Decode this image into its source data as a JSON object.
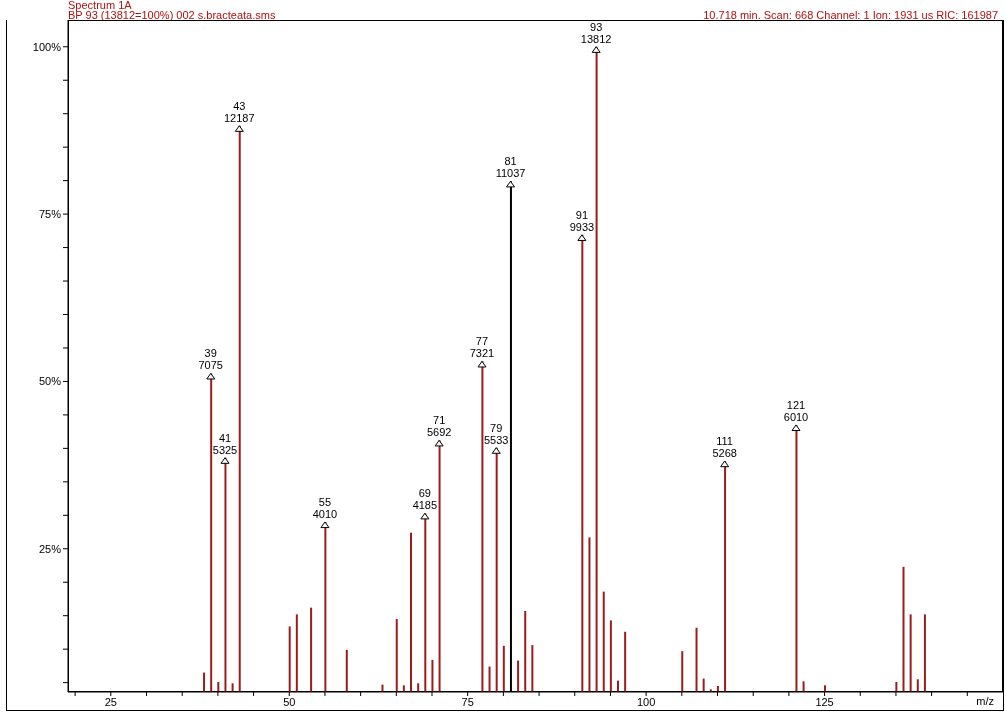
{
  "chart_data": {
    "type": "bar",
    "title": "Spectrum 1A",
    "subtitle": "BP 93 (13812=100%) 002 s.bracteata.sms",
    "xlabel": "m/z",
    "annotations": [
      "10.718 min. Scan: 668 Channel: 1 Ion: 1931 us RIC: 161987",
      {
        "text": "39\n7075",
        "x": 39,
        "y": 51.2
      },
      {
        "text": "41\n5325",
        "x": 41,
        "y": 38.6
      },
      {
        "text": "43\n12187",
        "x": 43,
        "y": 88.2
      },
      {
        "text": "55\n4010",
        "x": 55,
        "y": 29.0
      },
      {
        "text": "69\n4185",
        "x": 69,
        "y": 30.3
      },
      {
        "text": "71\n5692",
        "x": 71,
        "y": 41.2
      },
      {
        "text": "77\n7321",
        "x": 77,
        "y": 53.0
      },
      {
        "text": "79\n5533",
        "x": 79,
        "y": 40.1
      },
      {
        "text": "81\n11037",
        "x": 81,
        "y": 79.9
      },
      {
        "text": "91\n9933",
        "x": 91,
        "y": 71.9
      },
      {
        "text": "93\n13812",
        "x": 93,
        "y": 100
      },
      {
        "text": "111\n5268",
        "x": 111,
        "y": 38.1
      },
      {
        "text": "121\n6010",
        "x": 121,
        "y": 43.5
      }
    ],
    "x": [
      38,
      39,
      40,
      41,
      42,
      43,
      50,
      51,
      53,
      55,
      58,
      63,
      65,
      66,
      67,
      68,
      69,
      70,
      71,
      77,
      78,
      79,
      80,
      81,
      82,
      83,
      84,
      91,
      92,
      93,
      94,
      95,
      96,
      97,
      105,
      107,
      108,
      109,
      110,
      111,
      121,
      122,
      125,
      135,
      136,
      137,
      138,
      139
    ],
    "values": [
      6.5,
      51.2,
      5.1,
      38.6,
      4.9,
      88.2,
      13.4,
      15.2,
      16.2,
      29.0,
      9.9,
      4.7,
      14.5,
      4.6,
      27.4,
      4.9,
      30.3,
      8.4,
      41.2,
      53.0,
      7.4,
      40.1,
      10.5,
      79.9,
      8.3,
      15.7,
      10.6,
      71.9,
      26.7,
      100,
      18.6,
      14.3,
      5.3,
      12.6,
      9.7,
      13.2,
      5.6,
      4.0,
      4.5,
      38.1,
      43.5,
      5.2,
      4.6,
      5.1,
      22.3,
      15.2,
      5.5,
      15.2
    ],
    "colors": [
      "#9b1c1c",
      "#9b1c1c",
      "#9b1c1c",
      "#9b1c1c",
      "#9b1c1c",
      "#9b1c1c",
      "#9b1c1c",
      "#9b1c1c",
      "#9b1c1c",
      "#9b1c1c",
      "#9b1c1c",
      "#9b1c1c",
      "#9b1c1c",
      "#9b1c1c",
      "#9b1c1c",
      "#9b1c1c",
      "#9b1c1c",
      "#9b1c1c",
      "#9b1c1c",
      "#9b1c1c",
      "#9b1c1c",
      "#9b1c1c",
      "#9b1c1c",
      "#000000",
      "#9b1c1c",
      "#9b1c1c",
      "#9b1c1c",
      "#9b1c1c",
      "#9b1c1c",
      "#9b1c1c",
      "#9b1c1c",
      "#9b1c1c",
      "#9b1c1c",
      "#9b1c1c",
      "#9b1c1c",
      "#9b1c1c",
      "#9b1c1c",
      "#9b1c1c",
      "#9b1c1c",
      "#9b1c1c",
      "#9b1c1c",
      "#9b1c1c",
      "#9b1c1c",
      "#9b1c1c",
      "#9b1c1c",
      "#9b1c1c",
      "#9b1c1c",
      "#9b1c1c"
    ],
    "xlim": [
      19,
      150
    ],
    "xticks": [
      {
        "value": 20,
        "label": null
      },
      25,
      {
        "value": 30,
        "label": null
      },
      {
        "value": 35,
        "label": null
      },
      {
        "value": 40,
        "label": null
      },
      {
        "value": 45,
        "label": null
      },
      50,
      {
        "value": 55,
        "label": null
      },
      {
        "value": 60,
        "label": null
      },
      {
        "value": 65,
        "label": null
      },
      {
        "value": 70,
        "label": null
      },
      75,
      {
        "value": 80,
        "label": null
      },
      {
        "value": 85,
        "label": null
      },
      {
        "value": 90,
        "label": null
      },
      {
        "value": 95,
        "label": null
      },
      100,
      {
        "value": 105,
        "label": null
      },
      {
        "value": 110,
        "label": null
      },
      {
        "value": 115,
        "label": null
      },
      {
        "value": 120,
        "label": null
      },
      125,
      {
        "value": 130,
        "label": null
      },
      {
        "value": 135,
        "label": null
      },
      {
        "value": 140,
        "label": null
      },
      {
        "value": 145,
        "label": null
      }
    ],
    "ylim": [
      3.6,
      104
    ],
    "yticks": [
      {
        "value": 5,
        "label": null
      },
      {
        "value": 10,
        "label": null
      },
      {
        "value": 15,
        "label": null
      },
      {
        "value": 20,
        "label": null
      },
      {
        "value": 25,
        "label": "25%"
      },
      {
        "value": 30,
        "label": null
      },
      {
        "value": 35,
        "label": null
      },
      {
        "value": 40,
        "label": null
      },
      {
        "value": 45,
        "label": null
      },
      {
        "value": 50,
        "label": "50%"
      },
      {
        "value": 55,
        "label": null
      },
      {
        "value": 60,
        "label": null
      },
      {
        "value": 65,
        "label": null
      },
      {
        "value": 70,
        "label": null
      },
      {
        "value": 75,
        "label": "75%"
      },
      {
        "value": 80,
        "label": null
      },
      {
        "value": 85,
        "label": null
      },
      {
        "value": 90,
        "label": null
      },
      {
        "value": 95,
        "label": null
      },
      {
        "value": 100,
        "label": "100%"
      }
    ],
    "marker": "triangle",
    "grid": false
  }
}
